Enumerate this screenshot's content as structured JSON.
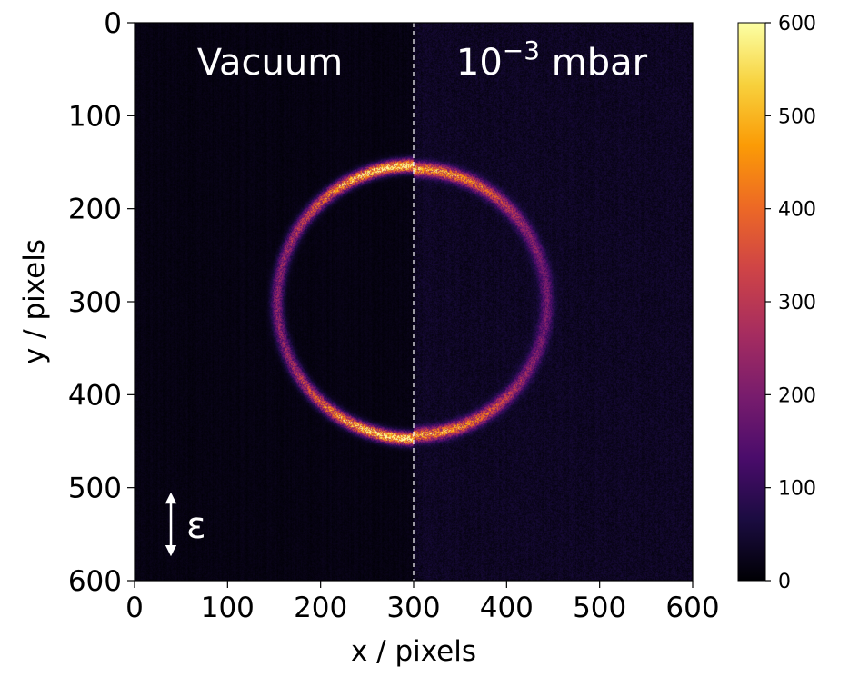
{
  "chart_data": {
    "type": "heatmap",
    "description_series": "detector image of a ring; left half vacuum, right half 10^-3 mbar",
    "xlabel": "x / pixels",
    "ylabel": "y / pixels",
    "xlim": [
      0,
      600
    ],
    "ylim": [
      600,
      0
    ],
    "xticks": [
      0,
      100,
      200,
      300,
      400,
      500,
      600
    ],
    "yticks": [
      0,
      100,
      200,
      300,
      400,
      500,
      600
    ],
    "panels": [
      {
        "name": "left",
        "label": "Vacuum",
        "x_range": [
          0,
          300
        ]
      },
      {
        "name": "right",
        "label_base": "10",
        "label_exponent": "−3",
        "label_unit": " mbar",
        "x_range": [
          300,
          600
        ]
      }
    ],
    "divider_x": 300,
    "ring": {
      "center_x": 300,
      "center_y": 300,
      "radius_left": 147,
      "radius_right": 143,
      "peak_intensity_left": 560,
      "peak_intensity_right": 420,
      "top_bottom_brightening": true
    },
    "background_intensity": {
      "left": 15,
      "right": 35
    },
    "polarization_label": "ε",
    "colorbar": {
      "colormap": "inferno",
      "min": 0,
      "max": 600,
      "ticks": [
        0,
        100,
        200,
        300,
        400,
        500,
        600
      ]
    }
  },
  "colors": {
    "text": "#000000",
    "annotation": "#ffffff",
    "inferno_stops": [
      "#000004",
      "#1b0c41",
      "#4a0c6b",
      "#781c6d",
      "#a52c60",
      "#cf4446",
      "#ed6925",
      "#fb9b06",
      "#f7d13d",
      "#fcffa4"
    ]
  }
}
